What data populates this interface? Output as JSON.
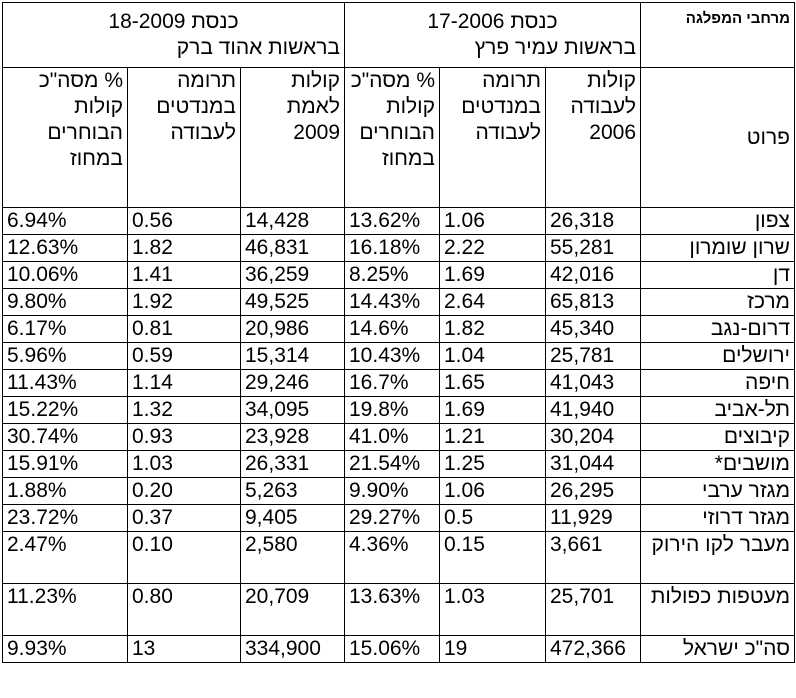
{
  "header": {
    "region_label": "מרחבי המפלגה",
    "knesset17": {
      "title": "כנסת 17-2006",
      "subtitle": "בראשות עמיר פרץ"
    },
    "knesset18": {
      "title": "כנסת 18-2009",
      "subtitle": "בראשות אהוד ברק"
    }
  },
  "columns": {
    "detail": "פרוט",
    "votes2006": "קולות לעבודה 2006",
    "contrib2006": "תרומה במנדטים לעבודה",
    "pct2006": "% מסה\"כ קולות הבוחרים במחוז",
    "votes2009": "קולות לאמת 2009",
    "contrib2009": "תרומה במנדטים לעבודה",
    "pct2009": "% מסה\"כ קולות הבוחרים במחוז"
  },
  "rows": [
    {
      "name": "צפון",
      "v06": "26,318",
      "c06": "1.06",
      "p06": "13.62%",
      "v09": "14,428",
      "c09": "0.56",
      "p09": "6.94%"
    },
    {
      "name": "שרון שומרון",
      "v06": "55,281",
      "c06": "2.22",
      "p06": "16.18%",
      "v09": "46,831",
      "c09": "1.82",
      "p09": "12.63%"
    },
    {
      "name": "דן",
      "v06": "42,016",
      "c06": "1.69",
      "p06": "8.25%",
      "v09": "36,259",
      "c09": "1.41",
      "p09": "10.06%"
    },
    {
      "name": "מרכז",
      "v06": "65,813",
      "c06": "2.64",
      "p06": "14.43%",
      "v09": "49,525",
      "c09": "1.92",
      "p09": "9.80%"
    },
    {
      "name": "דרום-נגב",
      "v06": "45,340",
      "c06": "1.82",
      "p06": "14.6%",
      "v09": "20,986",
      "c09": "0.81",
      "p09": "6.17%"
    },
    {
      "name": "ירושלים",
      "v06": "25,781",
      "c06": "1.04",
      "p06": "10.43%",
      "v09": "15,314",
      "c09": "0.59",
      "p09": "5.96%"
    },
    {
      "name": "חיפה",
      "v06": "41,043",
      "c06": "1.65",
      "p06": "16.7%",
      "v09": "29,246",
      "c09": "1.14",
      "p09": "11.43%"
    },
    {
      "name": "תל-אביב",
      "v06": "41,940",
      "c06": "1.69",
      "p06": "19.8%",
      "v09": "34,095",
      "c09": "1.32",
      "p09": "15.22%"
    },
    {
      "name": "קיבוצים",
      "v06": "30,204",
      "c06": "1.21",
      "p06": "41.0%",
      "v09": "23,928",
      "c09": "0.93",
      "p09": "30.74%"
    },
    {
      "name": "מושבים*",
      "v06": "31,044",
      "c06": "1.25",
      "p06": "21.54%",
      "v09": "26,331",
      "c09": "1.03",
      "p09": "15.91%"
    },
    {
      "name": "מגזר ערבי",
      "v06": "26,295",
      "c06": "1.06",
      "p06": "9.90%",
      "v09": "5,263",
      "c09": "0.20",
      "p09": "1.88%"
    },
    {
      "name": "מגזר דרוזי",
      "v06": "11,929",
      "c06": "0.5",
      "p06": "29.27%",
      "v09": "9,405",
      "c09": "0.37",
      "p09": "23.72%"
    },
    {
      "name": "מעבר לקו הירוק",
      "v06": "3,661",
      "c06": "0.15",
      "p06": "4.36%",
      "v09": "2,580",
      "c09": "0.10",
      "p09": "2.47%"
    },
    {
      "name": "מעטפות כפולות",
      "v06": "25,701",
      "c06": "1.03",
      "p06": "13.63%",
      "v09": "20,709",
      "c09": "0.80",
      "p09": "11.23%"
    },
    {
      "name": "סה\"כ ישראל",
      "v06": "472,366",
      "c06": "19",
      "p06": "15.06%",
      "v09": "334,900",
      "c09": "13",
      "p09": "9.93%"
    }
  ]
}
